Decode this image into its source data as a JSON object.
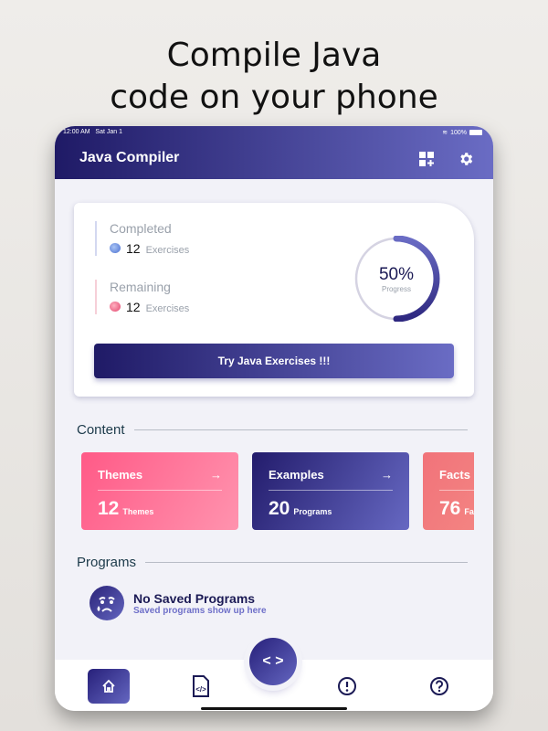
{
  "headline": [
    "Compile Java",
    "code on your phone"
  ],
  "status": {
    "time": "12:00 AM",
    "date": "Sat Jan 1",
    "battery": "100%"
  },
  "appbar": {
    "title": "Java Compiler",
    "icons": [
      "dashboard-add-icon",
      "gear-icon"
    ]
  },
  "progress_card": {
    "completed": {
      "label": "Completed",
      "count": "12",
      "unit": "Exercises"
    },
    "remaining": {
      "label": "Remaining",
      "count": "12",
      "unit": "Exercises"
    },
    "progress": {
      "value": 50,
      "text": "50%",
      "label": "Progress"
    },
    "button": "Try Java Exercises !!!"
  },
  "content": {
    "title": "Content",
    "tiles": [
      {
        "title": "Themes",
        "count": "12",
        "unit": "Themes",
        "colors": [
          "#ff5a87",
          "#ff93ae"
        ]
      },
      {
        "title": "Examples",
        "count": "20",
        "unit": "Programs",
        "colors": [
          "#231c6c",
          "#6668c2"
        ]
      },
      {
        "title": "Facts",
        "count": "76",
        "unit": "Facts",
        "colors": [
          "#f1737a",
          "#f6968a"
        ]
      }
    ]
  },
  "programs": {
    "title": "Programs",
    "empty_title": "No Saved Programs",
    "empty_subtitle": "Saved programs show up here"
  },
  "nav": {
    "items": [
      "home-icon",
      "code-file-icon",
      "code-icon",
      "info-icon",
      "help-icon"
    ]
  },
  "colors": {
    "accent_start": "#1f1a66",
    "accent_end": "#6a6cc4"
  }
}
